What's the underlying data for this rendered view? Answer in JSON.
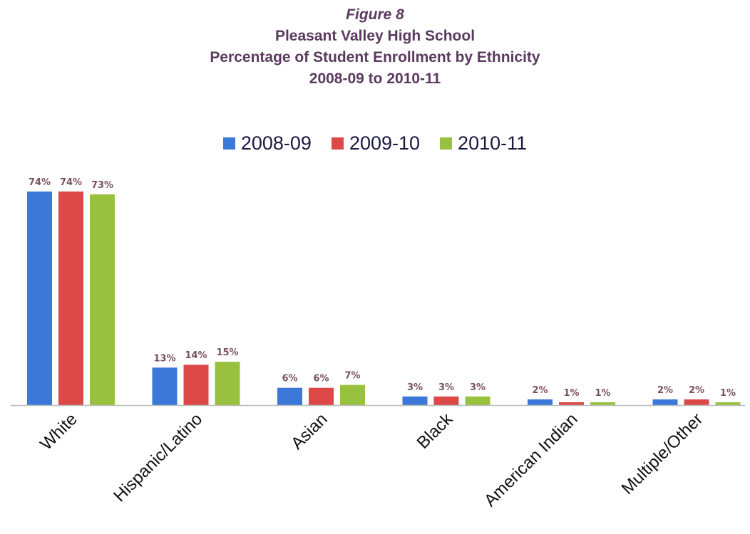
{
  "chart_data": {
    "type": "bar",
    "title": "Figure 8",
    "title_lines": [
      "Figure 8",
      "Pleasant Valley High School",
      "Percentage of Student Enrollment by Ethnicity",
      "2008-09 to 2010-11"
    ],
    "categories": [
      "White",
      "Hispanic/Latino",
      "Asian",
      "Black",
      "American Indian",
      "Multiple/Other"
    ],
    "series": [
      {
        "name": "2008-09",
        "color": "#3b78d8",
        "values": [
          74,
          13,
          6,
          3,
          2,
          2
        ]
      },
      {
        "name": "2009-10",
        "color": "#dd4848",
        "values": [
          74,
          14,
          6,
          3,
          1,
          2
        ]
      },
      {
        "name": "2010-11",
        "color": "#99c140",
        "values": [
          73,
          15,
          7,
          3,
          1,
          1
        ]
      }
    ],
    "value_suffix": "%",
    "xlabel": "",
    "ylabel": "",
    "ylim": [
      0,
      74
    ],
    "grid": false,
    "legend_position": "top"
  }
}
